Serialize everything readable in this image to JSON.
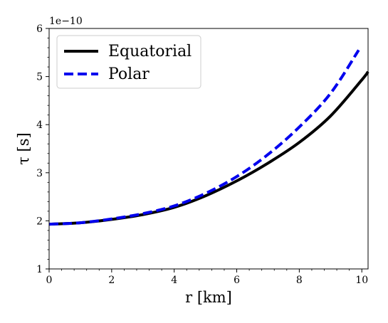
{
  "chart_data": {
    "type": "line",
    "title": "",
    "xlabel": "r [km]",
    "ylabel": "τ [s]",
    "y_offset_label": "1e−10",
    "xlim": [
      0,
      10.2
    ],
    "ylim": [
      1,
      6
    ],
    "x_ticks": [
      0,
      2,
      4,
      6,
      8,
      10
    ],
    "y_ticks": [
      1,
      2,
      3,
      4,
      5,
      6
    ],
    "grid": false,
    "legend_position": "upper-left",
    "series": [
      {
        "name": "Equatorial",
        "color": "#000000",
        "style": "solid",
        "x": [
          0,
          1,
          2,
          3,
          4,
          5,
          6,
          7,
          8,
          9,
          10,
          10.2
        ],
        "y": [
          1.93,
          1.96,
          2.03,
          2.13,
          2.28,
          2.52,
          2.83,
          3.2,
          3.63,
          4.18,
          4.93,
          5.1
        ]
      },
      {
        "name": "Polar",
        "color": "#0000ee",
        "style": "dashed",
        "x": [
          0,
          1,
          2,
          3,
          4,
          5,
          6,
          7,
          8,
          9,
          9.9
        ],
        "y": [
          1.93,
          1.96,
          2.04,
          2.15,
          2.31,
          2.57,
          2.92,
          3.38,
          3.95,
          4.65,
          5.55
        ]
      }
    ]
  }
}
